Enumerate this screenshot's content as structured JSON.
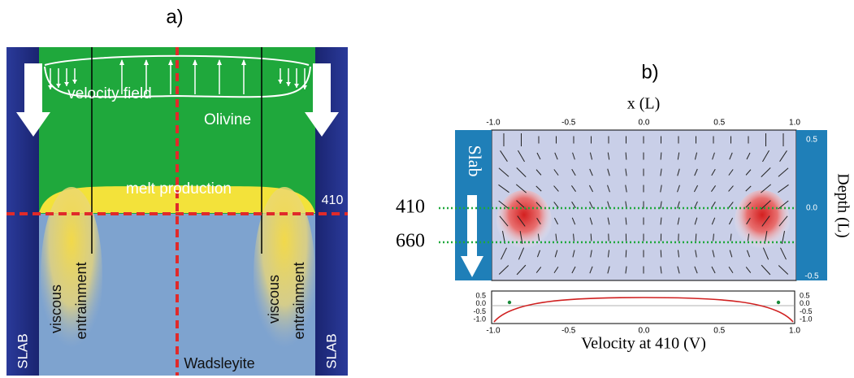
{
  "panel_a": {
    "label": "a)",
    "velocity_field": "velocity field",
    "olivine": "Olivine",
    "melt_production": "melt production",
    "depth_410": "410",
    "entrainment_left": [
      "viscous",
      "entrainment"
    ],
    "entrainment_right": [
      "viscous",
      "entrainment"
    ],
    "slab_left": "SLAB",
    "slab_right": "SLAB",
    "wadsleyite": "Wadsleyite"
  },
  "panel_b": {
    "label": "b)",
    "x_axis_title": "x (L)",
    "x_ticks_top": [
      "-1.0",
      "-0.5",
      "0.0",
      "0.5",
      "1.0"
    ],
    "y_ticks_right": [
      "0.5",
      "0.0",
      "-0.5"
    ],
    "y_axis_title": "Depth (L)",
    "slab": "Slab",
    "depth_410": "410",
    "depth_660": "660",
    "inset_y_ticks_left": [
      "0.5",
      "0.0",
      "-0.5",
      "-1.0"
    ],
    "inset_y_ticks_right": [
      "0.5",
      "0.0",
      "-0.5",
      "-1.0"
    ],
    "x_ticks_bottom": [
      "-1.0",
      "-0.5",
      "0.0",
      "0.5",
      "1.0"
    ],
    "x_axis_bottom_title": "Velocity at 410 (V)"
  }
}
